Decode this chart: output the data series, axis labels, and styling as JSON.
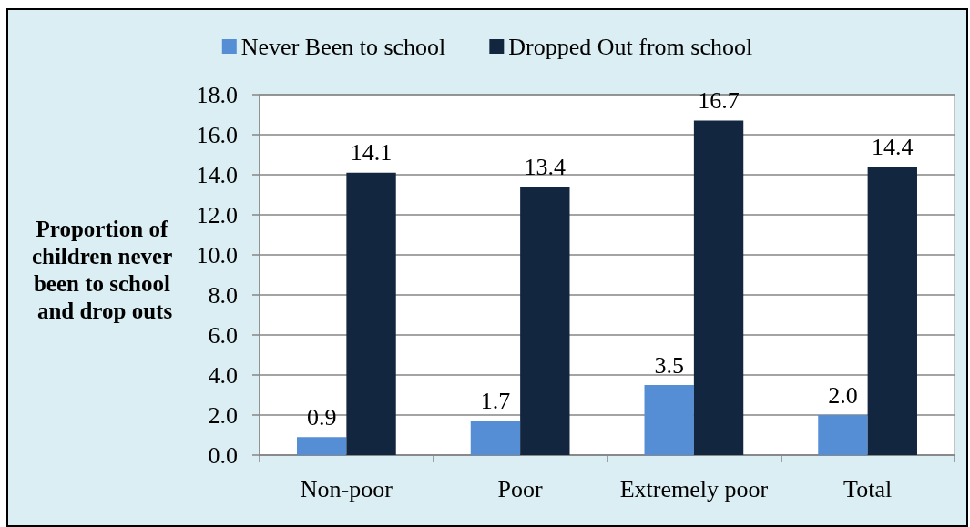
{
  "chart_data": {
    "type": "bar",
    "ylabel": "Proportion of children never been to school and drop outs",
    "categories": [
      "Non-poor",
      "Poor",
      "Extremely poor",
      "Total"
    ],
    "series": [
      {
        "name": "Never Been to school",
        "color": "#558ed5",
        "values": [
          0.9,
          1.7,
          3.5,
          2.0
        ],
        "value_labels": [
          "0.9",
          "1.7",
          "3.5",
          "2.0"
        ]
      },
      {
        "name": "Dropped Out from school",
        "color": "#13263f",
        "values": [
          14.1,
          13.4,
          16.7,
          14.4
        ],
        "value_labels": [
          "14.1",
          "13.4",
          "16.7",
          "14.4"
        ]
      }
    ],
    "ylim": [
      0,
      18
    ],
    "yticks": [
      {
        "value": 0,
        "label": "0.0"
      },
      {
        "value": 2,
        "label": "2.0"
      },
      {
        "value": 4,
        "label": "4.0"
      },
      {
        "value": 6,
        "label": "6.0"
      },
      {
        "value": 8,
        "label": "8.0"
      },
      {
        "value": 10,
        "label": "10.0"
      },
      {
        "value": 12,
        "label": "12.0"
      },
      {
        "value": 14,
        "label": "14.0"
      },
      {
        "value": 16,
        "label": "16.0"
      },
      {
        "value": 18,
        "label": "18.0"
      }
    ],
    "grid": "y",
    "legend": "top"
  }
}
